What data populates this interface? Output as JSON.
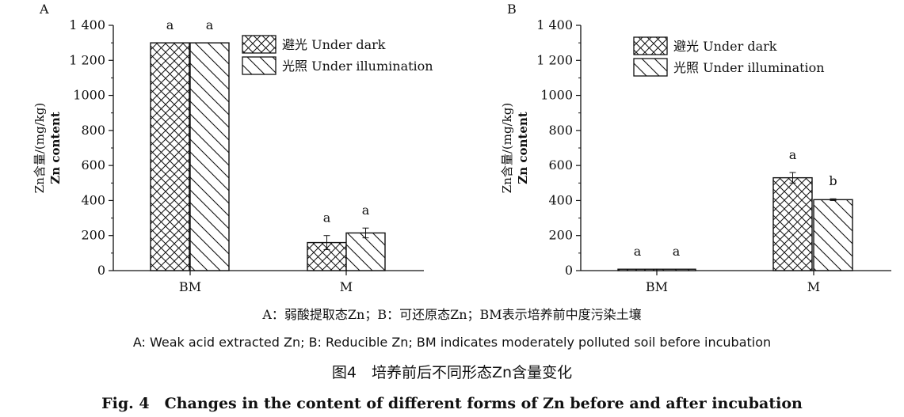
{
  "chart_data": [
    {
      "type": "bar",
      "panel": "A",
      "categories": [
        "BM",
        "M"
      ],
      "series": [
        {
          "name": "避光 Under dark",
          "values": [
            1300,
            160
          ],
          "errors": [
            0,
            40
          ],
          "letters": [
            "a",
            "a"
          ],
          "pattern": "crosshatch"
        },
        {
          "name": "光照 Under illumination",
          "values": [
            1300,
            215
          ],
          "errors": [
            0,
            28
          ],
          "letters": [
            "a",
            "a"
          ],
          "pattern": "diagonal"
        }
      ],
      "ylabel_lines": [
        "Zn含量/(mg/kg)",
        "Zn content"
      ],
      "ylim": [
        0,
        1400
      ],
      "ytick_labels": [
        "0",
        "200",
        "400",
        "600",
        "800",
        "1000",
        "1 200",
        "1 400"
      ],
      "legend_position": "top-right"
    },
    {
      "type": "bar",
      "panel": "B",
      "categories": [
        "BM",
        "M"
      ],
      "series": [
        {
          "name": "避光 Under dark",
          "values": [
            8,
            530
          ],
          "errors": [
            0,
            30
          ],
          "letters": [
            "a",
            "a"
          ],
          "pattern": "crosshatch"
        },
        {
          "name": "光照 Under illumination",
          "values": [
            8,
            405
          ],
          "errors": [
            0,
            5
          ],
          "letters": [
            "a",
            "b"
          ],
          "pattern": "diagonal"
        }
      ],
      "ylabel_lines": [
        "Zn含量/(mg/kg)",
        "Zn content"
      ],
      "ylim": [
        0,
        1400
      ],
      "ytick_labels": [
        "0",
        "200",
        "400",
        "600",
        "800",
        "1000",
        "1 200",
        "1 400"
      ],
      "legend_position": "top-right"
    }
  ],
  "captions": {
    "abbr_cn": "A：弱酸提取态Zn；B：可还原态Zn；BM表示培养前中度污染土壤",
    "abbr_en": "A: Weak acid extracted Zn; B: Reducible Zn; BM indicates moderately polluted soil before incubation",
    "title_cn": "图4　培养前后不同形态Zn含量变化",
    "title_en": "Fig. 4　Changes in the content of different forms of Zn before and after incubation"
  }
}
